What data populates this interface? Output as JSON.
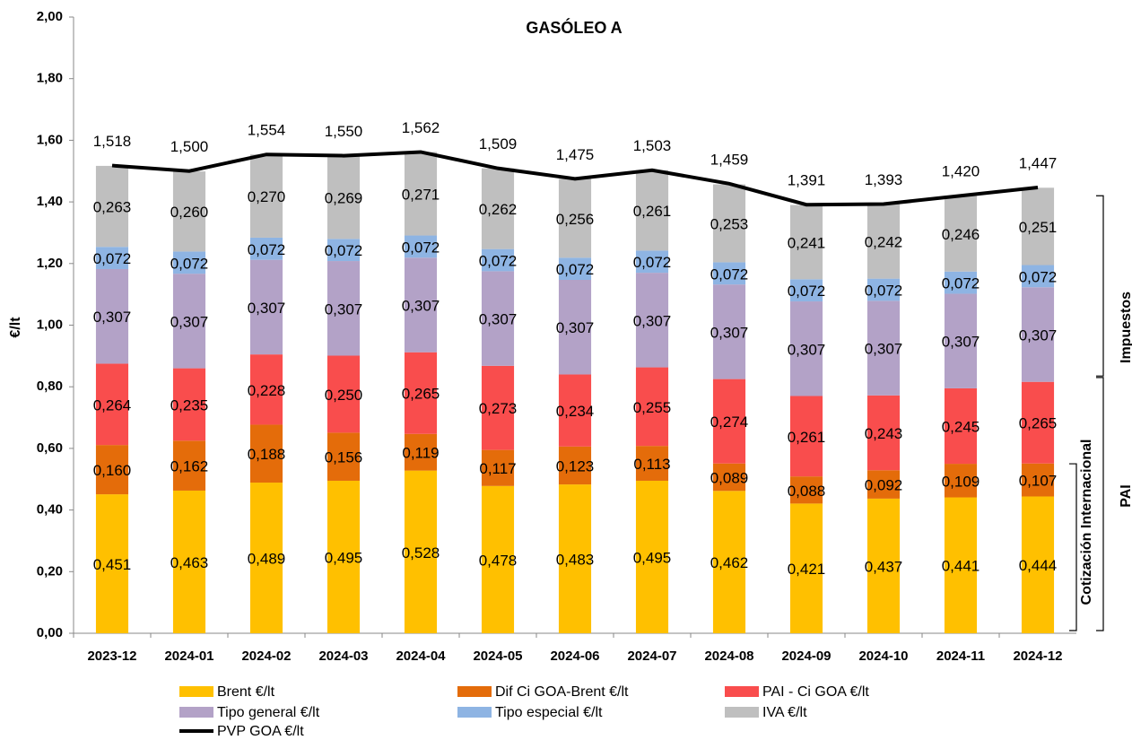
{
  "chart_data": {
    "type": "bar",
    "stacked": true,
    "title": "GASÓLEO A",
    "y_label": "€/lt",
    "categories": [
      "2023-12",
      "2024-01",
      "2024-02",
      "2024-03",
      "2024-04",
      "2024-05",
      "2024-06",
      "2024-07",
      "2024-08",
      "2024-09",
      "2024-10",
      "2024-11",
      "2024-12"
    ],
    "ylim": [
      0,
      2
    ],
    "yticks": [
      {
        "value": 0,
        "label": "0,00"
      },
      {
        "value": 0.2,
        "label": "0,20"
      },
      {
        "value": 0.4,
        "label": "0,40"
      },
      {
        "value": 0.6,
        "label": "0,60"
      },
      {
        "value": 0.8,
        "label": "0,80"
      },
      {
        "value": 1,
        "label": "1,00"
      },
      {
        "value": 1.2,
        "label": "1,20"
      },
      {
        "value": 1.4,
        "label": "1,40"
      },
      {
        "value": 1.6,
        "label": "1,60"
      },
      {
        "value": 1.8,
        "label": "1,80"
      },
      {
        "value": 2,
        "label": "2,00"
      }
    ],
    "series": [
      {
        "name": "Brent €/lt",
        "color": "#FFC000",
        "values": [
          0.451,
          0.463,
          0.489,
          0.495,
          0.528,
          0.478,
          0.483,
          0.495,
          0.462,
          0.421,
          0.437,
          0.441,
          0.444
        ],
        "value_labels": [
          "0,451",
          "0,463",
          "0,489",
          "0,495",
          "0,528",
          "0,478",
          "0,483",
          "0,495",
          "0,462",
          "0,421",
          "0,437",
          "0,441",
          "0,444"
        ]
      },
      {
        "name": "Dif Ci GOA-Brent €/lt",
        "color": "#E46C0A",
        "values": [
          0.16,
          0.162,
          0.188,
          0.156,
          0.119,
          0.117,
          0.123,
          0.113,
          0.089,
          0.088,
          0.092,
          0.109,
          0.107
        ],
        "value_labels": [
          "0,160",
          "0,162",
          "0,188",
          "0,156",
          "0,119",
          "0,117",
          "0,123",
          "0,113",
          "0,089",
          "0,088",
          "0,092",
          "0,109",
          "0,107"
        ]
      },
      {
        "name": "PAI - Ci GOA €/lt",
        "color": "#F94D4D",
        "values": [
          0.264,
          0.235,
          0.228,
          0.25,
          0.265,
          0.273,
          0.234,
          0.255,
          0.274,
          0.261,
          0.243,
          0.245,
          0.265
        ],
        "value_labels": [
          "0,264",
          "0,235",
          "0,228",
          "0,250",
          "0,265",
          "0,273",
          "0,234",
          "0,255",
          "0,274",
          "0,261",
          "0,243",
          "0,245",
          "0,265"
        ]
      },
      {
        "name": "Tipo general €/lt",
        "color": "#B3A2C7",
        "values": [
          0.307,
          0.307,
          0.307,
          0.307,
          0.307,
          0.307,
          0.307,
          0.307,
          0.307,
          0.307,
          0.307,
          0.307,
          0.307
        ],
        "value_labels": [
          "0,307",
          "0,307",
          "0,307",
          "0,307",
          "0,307",
          "0,307",
          "0,307",
          "0,307",
          "0,307",
          "0,307",
          "0,307",
          "0,307",
          "0,307"
        ]
      },
      {
        "name": "Tipo especial €/lt",
        "color": "#8EB4E3",
        "values": [
          0.072,
          0.072,
          0.072,
          0.072,
          0.072,
          0.072,
          0.072,
          0.072,
          0.072,
          0.072,
          0.072,
          0.072,
          0.072
        ],
        "value_labels": [
          "0,072",
          "0,072",
          "0,072",
          "0,072",
          "0,072",
          "0,072",
          "0,072",
          "0,072",
          "0,072",
          "0,072",
          "0,072",
          "0,072",
          "0,072"
        ]
      },
      {
        "name": "IVA €/lt",
        "color": "#BFBFBF",
        "values": [
          0.263,
          0.26,
          0.27,
          0.269,
          0.271,
          0.262,
          0.256,
          0.261,
          0.253,
          0.241,
          0.242,
          0.246,
          0.251
        ],
        "value_labels": [
          "0,263",
          "0,260",
          "0,270",
          "0,269",
          "0,271",
          "0,262",
          "0,256",
          "0,261",
          "0,253",
          "0,241",
          "0,242",
          "0,246",
          "0,251"
        ]
      },
      {
        "name": "PVP GOA €/lt",
        "type": "line",
        "color": "#000000",
        "values": [
          1.518,
          1.5,
          1.554,
          1.55,
          1.562,
          1.509,
          1.475,
          1.503,
          1.459,
          1.391,
          1.393,
          1.42,
          1.447
        ],
        "value_labels": [
          "1,518",
          "1,500",
          "1,554",
          "1,550",
          "1,562",
          "1,509",
          "1,475",
          "1,503",
          "1,459",
          "1,391",
          "1,393",
          "1,420",
          "1,447"
        ]
      }
    ],
    "annotations": [
      "Impuestos",
      "PAI",
      "Cotización Internacional"
    ]
  }
}
